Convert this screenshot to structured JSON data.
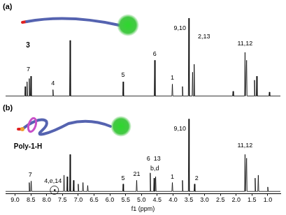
{
  "chart_data": [
    {
      "type": "line",
      "title": "(a)",
      "subtitle": "3",
      "color": "#000000",
      "grid": false,
      "tick_labels": false,
      "xlim": [
        9.3,
        0.6
      ],
      "ylim": [
        -3,
        105
      ],
      "x": [
        9.3,
        8.695,
        8.68,
        8.665,
        8.635,
        8.62,
        8.605,
        8.565,
        8.55,
        8.535,
        8.515,
        8.5,
        8.485,
        7.815,
        7.8,
        7.785,
        7.275,
        7.26,
        7.245,
        5.595,
        5.58,
        5.565,
        4.595,
        4.58,
        4.565,
        4.035,
        4.02,
        4.005,
        3.715,
        3.7,
        3.685,
        3.515,
        3.5,
        3.485,
        3.395,
        3.38,
        3.365,
        3.345,
        3.33,
        3.315,
        2.115,
        2.1,
        2.085,
        1.735,
        1.72,
        1.705,
        1.685,
        1.67,
        1.655,
        1.435,
        1.42,
        1.405,
        1.365,
        1.35,
        1.335,
        0.965,
        0.95,
        0.935,
        0.6
      ],
      "values": [
        0,
        0,
        12,
        0,
        0,
        18,
        0,
        0,
        22,
        0,
        0,
        25,
        0,
        0,
        8,
        0,
        0,
        70,
        0,
        0,
        18,
        0,
        0,
        45,
        0,
        0,
        15,
        0,
        0,
        12,
        0,
        0,
        98,
        0,
        0,
        30,
        0,
        0,
        40,
        0,
        0,
        6,
        0,
        0,
        55,
        0,
        0,
        45,
        0,
        0,
        20,
        0,
        0,
        25,
        0,
        0,
        5,
        0,
        0
      ],
      "annotations": [
        {
          "text": "7",
          "x": 8.58,
          "y": 33
        },
        {
          "text": "4",
          "x": 7.8,
          "y": 16
        },
        {
          "text": "5",
          "x": 5.58,
          "y": 26
        },
        {
          "text": "6",
          "x": 4.58,
          "y": 53
        },
        {
          "text": "1",
          "x": 4.02,
          "y": 23
        },
        {
          "text": "9,10",
          "x": 3.78,
          "y": 85
        },
        {
          "text": "2,13",
          "x": 3.02,
          "y": 75
        },
        {
          "text": "11,12",
          "x": 1.72,
          "y": 66
        }
      ]
    },
    {
      "type": "line",
      "title": "(b)",
      "subtitle": "Poly-1-H",
      "color": "#000000",
      "grid": false,
      "tick_labels": "x",
      "x_label": "f1 (ppm)",
      "xlim": [
        9.3,
        0.6
      ],
      "ylim": [
        -3,
        105
      ],
      "xticks": [
        {
          "value": 9,
          "label": "9.0"
        },
        8.5,
        {
          "value": 8,
          "label": "8.0"
        },
        7.5,
        {
          "value": 7,
          "label": "7.0"
        },
        6.5,
        {
          "value": 6,
          "label": "6.0"
        },
        5.5,
        {
          "value": 5,
          "label": "5.0"
        },
        4.5,
        {
          "value": 4,
          "label": "4.0"
        },
        3.5,
        {
          "value": 3,
          "label": "3.0"
        },
        2.5,
        {
          "value": 2,
          "label": "2.0"
        },
        1.5,
        {
          "value": 1,
          "label": "1.0"
        }
      ],
      "x": [
        9.3,
        8.565,
        8.55,
        8.535,
        8.505,
        8.49,
        8.475,
        7.765,
        7.75,
        7.735,
        7.465,
        7.45,
        7.435,
        7.365,
        7.35,
        7.335,
        7.275,
        7.26,
        7.245,
        7.165,
        7.15,
        7.135,
        7.015,
        7.0,
        6.985,
        6.865,
        6.85,
        6.835,
        6.715,
        6.7,
        6.685,
        5.595,
        5.58,
        5.565,
        5.165,
        5.15,
        5.135,
        4.735,
        4.72,
        4.705,
        4.615,
        4.6,
        4.585,
        4.565,
        4.55,
        4.535,
        4.035,
        4.02,
        4.005,
        3.715,
        3.7,
        3.685,
        3.515,
        3.5,
        3.485,
        3.335,
        3.32,
        3.305,
        1.735,
        1.72,
        1.705,
        1.685,
        1.67,
        1.655,
        1.415,
        1.4,
        1.385,
        1.315,
        1.3,
        1.285,
        1.015,
        1.0,
        0.985,
        0.6
      ],
      "values": [
        0,
        0,
        12,
        0,
        0,
        14,
        0,
        0,
        3,
        0,
        0,
        22,
        0,
        0,
        20,
        0,
        0,
        50,
        0,
        0,
        15,
        0,
        0,
        10,
        0,
        0,
        12,
        0,
        0,
        8,
        0,
        0,
        10,
        0,
        0,
        15,
        0,
        0,
        25,
        0,
        0,
        18,
        0,
        0,
        20,
        0,
        0,
        12,
        0,
        0,
        15,
        0,
        0,
        98,
        0,
        0,
        10,
        0,
        0,
        50,
        0,
        0,
        45,
        0,
        0,
        18,
        0,
        0,
        22,
        0,
        0,
        6,
        0,
        0
      ],
      "annotations": [
        {
          "text": "7",
          "x": 8.52,
          "y": 22
        },
        {
          "text": "4,e,14",
          "x": 7.8,
          "y": 14,
          "marker": "circle"
        },
        {
          "text": "5",
          "x": 5.58,
          "y": 18
        },
        {
          "text": "21",
          "x": 5.15,
          "y": 23
        },
        {
          "text": "6",
          "x": 4.78,
          "y": 44
        },
        {
          "text": "13",
          "x": 4.5,
          "y": 44
        },
        {
          "text": "b,d",
          "x": 4.58,
          "y": 31
        },
        {
          "text": "1",
          "x": 4.02,
          "y": 20
        },
        {
          "text": "9,10",
          "x": 3.78,
          "y": 85
        },
        {
          "text": "2",
          "x": 3.25,
          "y": 18
        },
        {
          "text": "11,12",
          "x": 1.72,
          "y": 62
        }
      ]
    }
  ]
}
